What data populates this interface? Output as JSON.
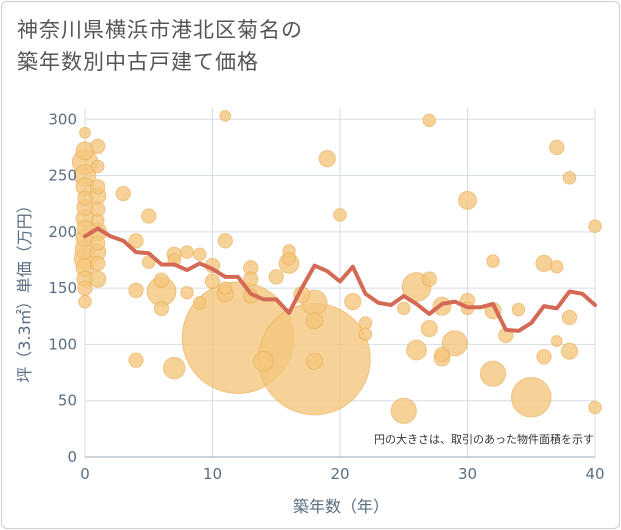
{
  "title_lines": [
    "神奈川県横浜市港北区菊名の",
    "築年数別中古戸建て価格"
  ],
  "colors": {
    "bubble": "#f5c77e",
    "bubble_edge": "#e6ab55",
    "line": "#d46a55",
    "grid": "#d5dde6",
    "text": "#5a6e82"
  },
  "chart_data": {
    "type": "scatter",
    "title": "神奈川県横浜市港北区菊名の築年数別中古戸建て価格",
    "xlabel": "築年数（年）",
    "ylabel": "坪（3.3㎡）単価（万円）",
    "xlim": [
      0,
      40
    ],
    "ylim": [
      0,
      310
    ],
    "x_ticks": [
      0,
      10,
      20,
      30,
      40
    ],
    "y_ticks": [
      0,
      50,
      100,
      150,
      200,
      250,
      300
    ],
    "grid": true,
    "annotation": "円の大きさは、取引のあった物件面積を示す",
    "bubbles": [
      {
        "x": 0,
        "y": 288,
        "s": 0.6
      },
      {
        "x": 0,
        "y": 272,
        "s": 1.0
      },
      {
        "x": 0,
        "y": 262,
        "s": 1.4
      },
      {
        "x": 0,
        "y": 250,
        "s": 1.2
      },
      {
        "x": 0,
        "y": 240,
        "s": 1.0
      },
      {
        "x": 0,
        "y": 230,
        "s": 0.8
      },
      {
        "x": 0,
        "y": 222,
        "s": 0.9
      },
      {
        "x": 0,
        "y": 212,
        "s": 1.0
      },
      {
        "x": 0,
        "y": 203,
        "s": 0.9
      },
      {
        "x": 0,
        "y": 195,
        "s": 1.0
      },
      {
        "x": 0,
        "y": 185,
        "s": 1.1
      },
      {
        "x": 0,
        "y": 176,
        "s": 1.2
      },
      {
        "x": 0,
        "y": 168,
        "s": 1.0
      },
      {
        "x": 0,
        "y": 158,
        "s": 0.9
      },
      {
        "x": 0,
        "y": 150,
        "s": 0.8
      },
      {
        "x": 0,
        "y": 138,
        "s": 0.7
      },
      {
        "x": 1,
        "y": 276,
        "s": 0.8
      },
      {
        "x": 1,
        "y": 258,
        "s": 0.7
      },
      {
        "x": 1,
        "y": 240,
        "s": 0.8
      },
      {
        "x": 1,
        "y": 232,
        "s": 0.9
      },
      {
        "x": 1,
        "y": 220,
        "s": 0.8
      },
      {
        "x": 1,
        "y": 210,
        "s": 0.7
      },
      {
        "x": 1,
        "y": 200,
        "s": 1.0
      },
      {
        "x": 1,
        "y": 190,
        "s": 0.8
      },
      {
        "x": 1,
        "y": 182,
        "s": 0.9
      },
      {
        "x": 1,
        "y": 172,
        "s": 0.8
      },
      {
        "x": 1,
        "y": 158,
        "s": 0.9
      },
      {
        "x": 3,
        "y": 234,
        "s": 0.8
      },
      {
        "x": 4,
        "y": 192,
        "s": 0.8
      },
      {
        "x": 4,
        "y": 148,
        "s": 0.8
      },
      {
        "x": 4,
        "y": 86,
        "s": 0.8
      },
      {
        "x": 5,
        "y": 214,
        "s": 0.8
      },
      {
        "x": 5,
        "y": 173,
        "s": 0.7
      },
      {
        "x": 6,
        "y": 157,
        "s": 0.8
      },
      {
        "x": 6,
        "y": 147,
        "s": 1.6
      },
      {
        "x": 6,
        "y": 132,
        "s": 0.8
      },
      {
        "x": 7,
        "y": 180,
        "s": 0.8
      },
      {
        "x": 7,
        "y": 175,
        "s": 0.7
      },
      {
        "x": 7,
        "y": 79,
        "s": 1.2
      },
      {
        "x": 8,
        "y": 182,
        "s": 0.7
      },
      {
        "x": 8,
        "y": 146,
        "s": 0.7
      },
      {
        "x": 9,
        "y": 180,
        "s": 0.7
      },
      {
        "x": 9,
        "y": 137,
        "s": 0.7
      },
      {
        "x": 10,
        "y": 170,
        "s": 0.8
      },
      {
        "x": 10,
        "y": 156,
        "s": 0.8
      },
      {
        "x": 11,
        "y": 303,
        "s": 0.6
      },
      {
        "x": 11,
        "y": 192,
        "s": 0.8
      },
      {
        "x": 11,
        "y": 150,
        "s": 0.7
      },
      {
        "x": 11,
        "y": 145,
        "s": 0.9
      },
      {
        "x": 12,
        "y": 106,
        "s": 6.2
      },
      {
        "x": 13,
        "y": 168,
        "s": 0.8
      },
      {
        "x": 13,
        "y": 158,
        "s": 0.8
      },
      {
        "x": 13,
        "y": 143,
        "s": 0.8
      },
      {
        "x": 14,
        "y": 85,
        "s": 1.1
      },
      {
        "x": 15,
        "y": 160,
        "s": 0.8
      },
      {
        "x": 16,
        "y": 183,
        "s": 0.7
      },
      {
        "x": 16,
        "y": 176,
        "s": 0.7
      },
      {
        "x": 16,
        "y": 172,
        "s": 1.1
      },
      {
        "x": 17,
        "y": 144,
        "s": 0.9
      },
      {
        "x": 18,
        "y": 137,
        "s": 1.4
      },
      {
        "x": 18,
        "y": 121,
        "s": 0.9
      },
      {
        "x": 18,
        "y": 87,
        "s": 6.2
      },
      {
        "x": 18,
        "y": 85,
        "s": 0.9
      },
      {
        "x": 19,
        "y": 265,
        "s": 0.9
      },
      {
        "x": 20,
        "y": 215,
        "s": 0.7
      },
      {
        "x": 21,
        "y": 138,
        "s": 0.9
      },
      {
        "x": 22,
        "y": 119,
        "s": 0.7
      },
      {
        "x": 22,
        "y": 109,
        "s": 0.7
      },
      {
        "x": 25,
        "y": 41,
        "s": 1.4
      },
      {
        "x": 25,
        "y": 132,
        "s": 0.7
      },
      {
        "x": 26,
        "y": 151,
        "s": 1.6
      },
      {
        "x": 26,
        "y": 95,
        "s": 1.1
      },
      {
        "x": 27,
        "y": 299,
        "s": 0.7
      },
      {
        "x": 27,
        "y": 158,
        "s": 0.8
      },
      {
        "x": 27,
        "y": 114,
        "s": 0.9
      },
      {
        "x": 28,
        "y": 134,
        "s": 1.0
      },
      {
        "x": 28,
        "y": 91,
        "s": 0.8
      },
      {
        "x": 28,
        "y": 88,
        "s": 0.9
      },
      {
        "x": 29,
        "y": 101,
        "s": 1.4
      },
      {
        "x": 30,
        "y": 228,
        "s": 1.0
      },
      {
        "x": 30,
        "y": 139,
        "s": 0.8
      },
      {
        "x": 30,
        "y": 132,
        "s": 0.7
      },
      {
        "x": 32,
        "y": 174,
        "s": 0.7
      },
      {
        "x": 32,
        "y": 130,
        "s": 0.9
      },
      {
        "x": 32,
        "y": 74,
        "s": 1.4
      },
      {
        "x": 33,
        "y": 108,
        "s": 0.8
      },
      {
        "x": 34,
        "y": 131,
        "s": 0.7
      },
      {
        "x": 35,
        "y": 53,
        "s": 2.2
      },
      {
        "x": 36,
        "y": 172,
        "s": 0.9
      },
      {
        "x": 36,
        "y": 89,
        "s": 0.8
      },
      {
        "x": 37,
        "y": 275,
        "s": 0.8
      },
      {
        "x": 37,
        "y": 169,
        "s": 0.7
      },
      {
        "x": 37,
        "y": 103,
        "s": 0.6
      },
      {
        "x": 38,
        "y": 248,
        "s": 0.7
      },
      {
        "x": 38,
        "y": 124,
        "s": 0.8
      },
      {
        "x": 38,
        "y": 94,
        "s": 0.9
      },
      {
        "x": 40,
        "y": 205,
        "s": 0.7
      },
      {
        "x": 40,
        "y": 44,
        "s": 0.7
      }
    ],
    "trend_line": {
      "x": [
        0,
        1,
        2,
        3,
        4,
        5,
        6,
        7,
        8,
        9,
        10,
        11,
        12,
        13,
        14,
        15,
        16,
        17,
        18,
        19,
        20,
        21,
        22,
        23,
        24,
        25,
        26,
        27,
        28,
        29,
        30,
        31,
        32,
        33,
        34,
        35,
        36,
        37,
        38,
        39,
        40
      ],
      "y": [
        196,
        203,
        196,
        192,
        182,
        181,
        171,
        171,
        166,
        172,
        167,
        160,
        160,
        145,
        140,
        140,
        128,
        150,
        170,
        165,
        156,
        169,
        145,
        137,
        135,
        143,
        136,
        127,
        136,
        138,
        133,
        133,
        136,
        113,
        112,
        119,
        134,
        132,
        147,
        145,
        135
      ]
    }
  }
}
